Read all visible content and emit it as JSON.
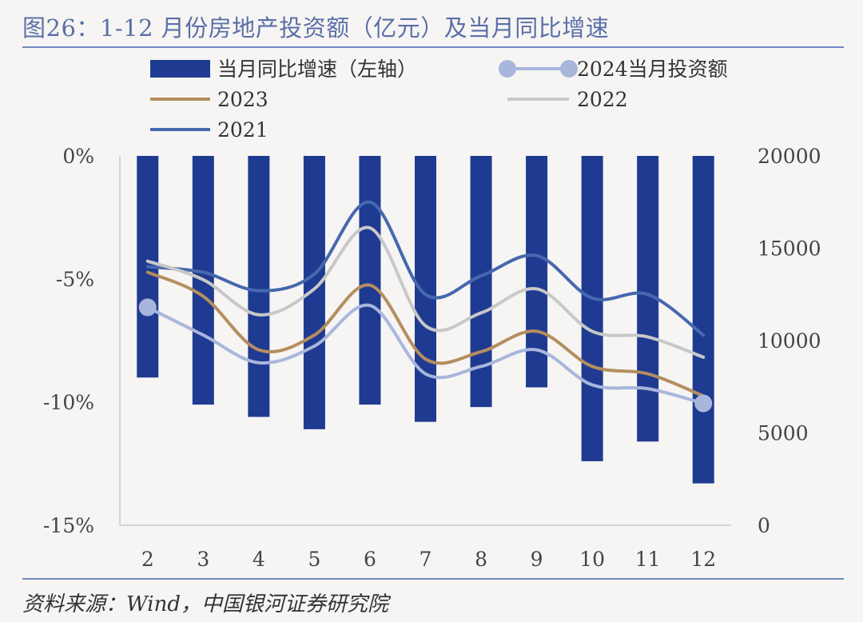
{
  "title": "图26：1-12 月份房地产投资额（亿元）及当月同比增速",
  "source": "资料来源：Wind，中国银河证券研究院",
  "colors": {
    "bar": "#1f3b91",
    "s2024": "#a9b6dc",
    "s2023": "#b58e5f",
    "s2022": "#c8c8c8",
    "s2021": "#4768ae",
    "title": "#5b6fa8"
  },
  "chart_data": {
    "type": "bar",
    "categories": [
      "2",
      "3",
      "4",
      "5",
      "6",
      "7",
      "8",
      "9",
      "10",
      "11",
      "12"
    ],
    "left_axis": {
      "ticks": [
        "0%",
        "-5%",
        "-10%",
        "-15%"
      ],
      "ylim": [
        -15,
        0
      ]
    },
    "right_axis": {
      "ticks": [
        "20000",
        "15000",
        "10000",
        "5000",
        "0"
      ],
      "ylim": [
        0,
        20000
      ]
    },
    "legend": [
      {
        "key": "bar",
        "label": "当月同比增速（左轴）"
      },
      {
        "key": "s2024",
        "label": "2024当月投资额"
      },
      {
        "key": "s2023",
        "label": "2023"
      },
      {
        "key": "s2022",
        "label": "2022"
      },
      {
        "key": "s2021",
        "label": "2021"
      }
    ],
    "bars": {
      "name": "当月同比增速（左轴）",
      "axis": "left",
      "values": [
        -9.0,
        -10.1,
        -10.6,
        -11.1,
        -10.1,
        -10.8,
        -10.2,
        -9.4,
        -12.4,
        -11.6,
        -13.3
      ]
    },
    "series": [
      {
        "key": "s2021",
        "name": "2021",
        "axis": "right",
        "values": [
          14000,
          13700,
          12700,
          13600,
          17500,
          12500,
          13500,
          14600,
          12300,
          12500,
          10300
        ]
      },
      {
        "key": "s2022",
        "name": "2022",
        "axis": "right",
        "values": [
          14300,
          13300,
          11400,
          12800,
          16100,
          10800,
          11500,
          12800,
          10500,
          10200,
          9100
        ]
      },
      {
        "key": "s2023",
        "name": "2023",
        "axis": "right",
        "values": [
          13700,
          12400,
          9500,
          10300,
          13000,
          9000,
          9400,
          10500,
          8600,
          8200,
          7000
        ]
      },
      {
        "key": "s2024",
        "name": "2024当月投资额",
        "axis": "right",
        "values": [
          11800,
          10300,
          8800,
          9700,
          11900,
          8200,
          8600,
          9500,
          7600,
          7400,
          6600
        ],
        "markers": [
          0,
          10
        ]
      }
    ]
  }
}
